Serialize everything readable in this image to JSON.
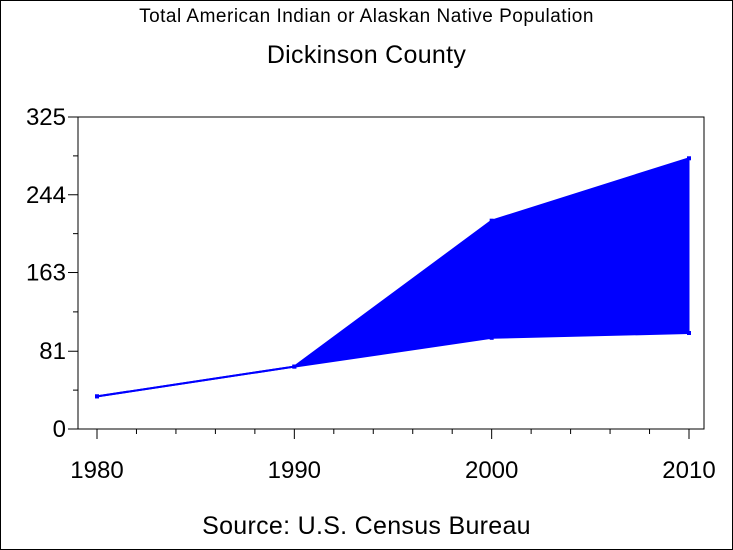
{
  "chart_data": {
    "type": "area",
    "title": "Total American Indian or Alaskan Native Population",
    "subtitle": "Dickinson County",
    "footnote": "Source: U.S. Census Bureau",
    "x": [
      1980,
      1990,
      2000,
      2010
    ],
    "x_ticks": [
      "1980",
      "1990",
      "2000",
      "2010"
    ],
    "y_ticks": [
      "0",
      "81",
      "163",
      "244",
      "325"
    ],
    "xlim": [
      1980,
      2010
    ],
    "ylim": [
      0,
      325
    ],
    "series": [
      {
        "values": [
          34,
          65,
          217,
          282
        ]
      },
      {
        "values": [
          34,
          65,
          95,
          100
        ]
      }
    ],
    "grid": false,
    "color": "#0000ff"
  }
}
